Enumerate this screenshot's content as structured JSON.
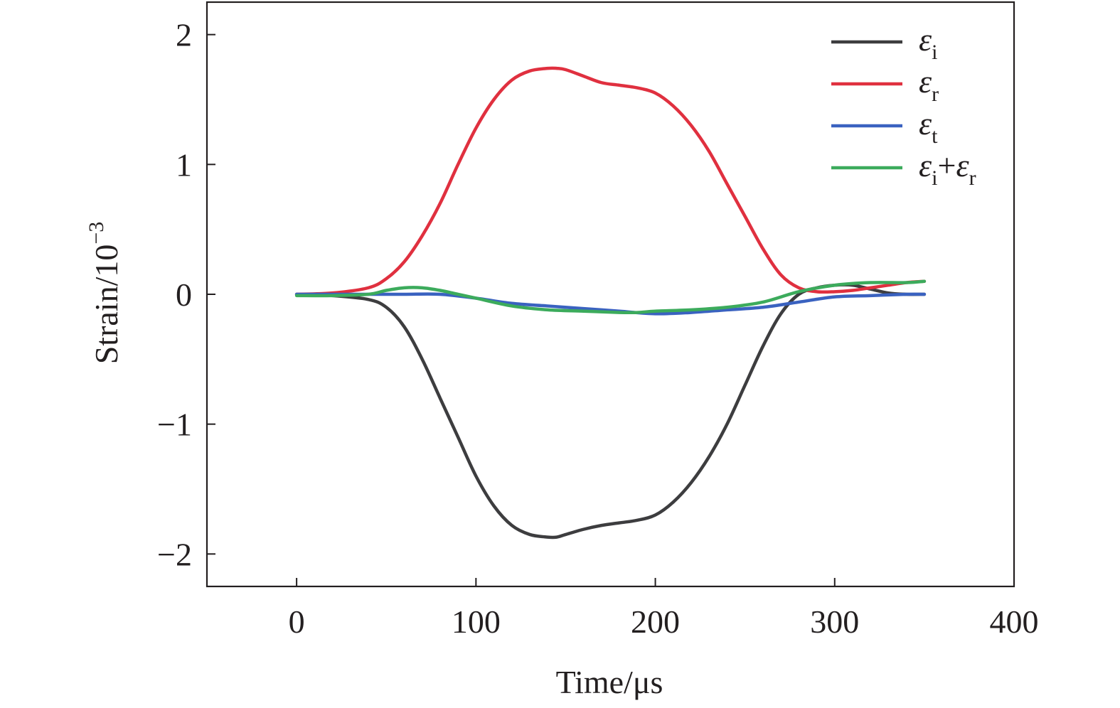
{
  "chart_data": {
    "type": "line",
    "xlabel": "Time/μs",
    "ylabel": "Strain/10",
    "ylabel_exponent": "−3",
    "xlim": [
      -50,
      400
    ],
    "ylim": [
      -2.25,
      2.25
    ],
    "xticks": [
      {
        "value": 0,
        "label": "0"
      },
      {
        "value": 100,
        "label": "100"
      },
      {
        "value": 200,
        "label": "200"
      },
      {
        "value": 300,
        "label": "300"
      },
      {
        "value": 400,
        "label": "400"
      }
    ],
    "yticks": [
      {
        "value": -2,
        "label": "−2"
      },
      {
        "value": -1,
        "label": "−1"
      },
      {
        "value": 0,
        "label": "0"
      },
      {
        "value": 1,
        "label": "1"
      },
      {
        "value": 2,
        "label": "2"
      }
    ],
    "grid": false,
    "legend_position": "top-right",
    "series": [
      {
        "name": "εi",
        "legend": {
          "symbol": "ε",
          "sub": "i"
        },
        "color": "#3d3d3f",
        "x": [
          0,
          20,
          40,
          50,
          60,
          70,
          80,
          90,
          100,
          110,
          120,
          130,
          140,
          145,
          150,
          160,
          170,
          180,
          190,
          200,
          210,
          220,
          230,
          240,
          250,
          260,
          270,
          280,
          290,
          300,
          310,
          320,
          330,
          340,
          350
        ],
        "y": [
          0,
          -0.01,
          -0.04,
          -0.1,
          -0.25,
          -0.5,
          -0.8,
          -1.1,
          -1.4,
          -1.63,
          -1.78,
          -1.85,
          -1.87,
          -1.87,
          -1.85,
          -1.81,
          -1.78,
          -1.76,
          -1.74,
          -1.7,
          -1.6,
          -1.45,
          -1.25,
          -1.0,
          -0.7,
          -0.4,
          -0.15,
          0.0,
          0.05,
          0.07,
          0.07,
          0.04,
          0.01,
          0.0,
          0.0
        ]
      },
      {
        "name": "εr",
        "legend": {
          "symbol": "ε",
          "sub": "r"
        },
        "color": "#e0303f",
        "x": [
          0,
          20,
          40,
          50,
          60,
          70,
          80,
          90,
          100,
          110,
          120,
          130,
          140,
          145,
          150,
          160,
          170,
          180,
          190,
          200,
          210,
          220,
          230,
          240,
          250,
          260,
          270,
          280,
          290,
          300,
          310,
          320,
          330,
          340,
          350
        ],
        "y": [
          0,
          0.01,
          0.05,
          0.12,
          0.25,
          0.45,
          0.7,
          1.0,
          1.28,
          1.5,
          1.65,
          1.72,
          1.74,
          1.74,
          1.73,
          1.68,
          1.63,
          1.61,
          1.59,
          1.55,
          1.45,
          1.3,
          1.1,
          0.85,
          0.6,
          0.35,
          0.15,
          0.05,
          0.02,
          0.02,
          0.03,
          0.05,
          0.07,
          0.09,
          0.1
        ]
      },
      {
        "name": "εt",
        "legend": {
          "symbol": "ε",
          "sub": "t"
        },
        "color": "#3a62c0",
        "x": [
          0,
          20,
          40,
          60,
          80,
          100,
          120,
          140,
          160,
          180,
          200,
          220,
          240,
          260,
          280,
          300,
          320,
          340,
          350
        ],
        "y": [
          0,
          0,
          0,
          0,
          0,
          -0.03,
          -0.07,
          -0.09,
          -0.11,
          -0.13,
          -0.15,
          -0.14,
          -0.12,
          -0.1,
          -0.06,
          -0.02,
          -0.01,
          0,
          0
        ]
      },
      {
        "name": "εi+εr",
        "legend": {
          "symbol": "ε",
          "sub": "i",
          "plus": "+",
          "symbol2": "ε",
          "sub2": "r"
        },
        "color": "#3cab5c",
        "x": [
          0,
          20,
          40,
          50,
          60,
          70,
          80,
          90,
          100,
          120,
          140,
          160,
          180,
          190,
          200,
          220,
          240,
          260,
          280,
          300,
          320,
          340,
          350
        ],
        "y": [
          -0.01,
          -0.01,
          0.0,
          0.03,
          0.05,
          0.05,
          0.03,
          0.0,
          -0.03,
          -0.09,
          -0.12,
          -0.13,
          -0.14,
          -0.14,
          -0.13,
          -0.12,
          -0.1,
          -0.06,
          0.02,
          0.07,
          0.09,
          0.09,
          0.1
        ]
      }
    ]
  }
}
